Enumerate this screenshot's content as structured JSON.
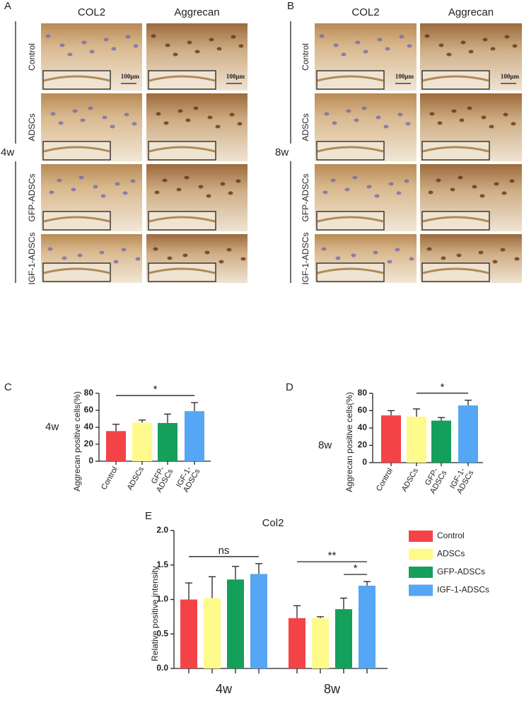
{
  "figure": {
    "panels": [
      {
        "label": "A",
        "time": "4w",
        "columns": [
          "COL2",
          "Aggrecan"
        ],
        "rows": [
          "Control",
          "ADSCs",
          "GFP-ADSCs",
          "IGF-1-ADSCs"
        ],
        "scale_bar": "100μm"
      },
      {
        "label": "B",
        "time": "8w",
        "columns": [
          "COL2",
          "Aggrecan"
        ],
        "rows": [
          "Control",
          "ADSCs",
          "GFP-ADSCs",
          "IGF-1-ADSCs"
        ],
        "scale_bar": "100μm"
      }
    ]
  },
  "chart_data": [
    {
      "type": "bar",
      "panel": "C",
      "side_label": "4w",
      "ylabel": "Aggrecan positive cells(%)",
      "categories": [
        "Control",
        "ADSCs",
        "GFP- ADSCs",
        "IGF-1- ADSCs"
      ],
      "values": [
        35.5,
        45.5,
        45,
        59
      ],
      "errors": [
        8,
        3,
        10.5,
        10
      ],
      "colors": [
        "#f44346",
        "#fffa8c",
        "#149f5b",
        "#55a6f5"
      ],
      "ylim": [
        0,
        80
      ],
      "yticks": [
        0,
        20,
        40,
        60,
        80
      ],
      "annotations": [
        {
          "text": "*",
          "from": 0,
          "to": 3
        }
      ]
    },
    {
      "type": "bar",
      "panel": "D",
      "side_label": "8w",
      "ylabel": "Aggrecan positive cells(%)",
      "categories": [
        "Control",
        "ADSCs",
        "GFP- ADSCs",
        "IGF-1- ADSCs"
      ],
      "values": [
        54.5,
        53,
        48.5,
        66
      ],
      "errors": [
        5.5,
        9,
        3.5,
        6
      ],
      "colors": [
        "#f44346",
        "#fffa8c",
        "#149f5b",
        "#55a6f5"
      ],
      "ylim": [
        0,
        80
      ],
      "yticks": [
        0,
        20,
        40,
        60,
        80
      ],
      "annotations": [
        {
          "text": "*",
          "from": 1,
          "to": 3
        }
      ]
    },
    {
      "type": "grouped_bar",
      "panel": "E",
      "title": "Col2",
      "ylabel": "Relative positive intensity",
      "categories": [
        "4w",
        "8w"
      ],
      "series": [
        {
          "name": "Control",
          "color": "#f44346",
          "values": [
            1.0,
            0.73
          ],
          "errors": [
            0.24,
            0.18
          ]
        },
        {
          "name": "ADSCs",
          "color": "#fffa8c",
          "values": [
            1.02,
            0.73
          ],
          "errors": [
            0.31,
            0.02
          ]
        },
        {
          "name": "GFP-ADSCs",
          "color": "#149f5b",
          "values": [
            1.29,
            0.86
          ],
          "errors": [
            0.19,
            0.16
          ]
        },
        {
          "name": "IGF-1-ADSCs",
          "color": "#55a6f5",
          "values": [
            1.37,
            1.2
          ],
          "errors": [
            0.15,
            0.06
          ]
        }
      ],
      "ylim": [
        0,
        2
      ],
      "yticks": [
        {
          "value": 0,
          "label": "0.0"
        },
        0.5,
        {
          "value": 1,
          "label": "1.0"
        },
        1.5,
        {
          "value": 2,
          "label": "2.0"
        }
      ],
      "annotations": [
        {
          "text": "ns",
          "group": 0,
          "from": 0,
          "to": 3
        },
        {
          "text": "**",
          "group": 1,
          "from": 0,
          "to": 3
        },
        {
          "text": "*",
          "group": 1,
          "from": 2,
          "to": 3
        }
      ]
    }
  ]
}
